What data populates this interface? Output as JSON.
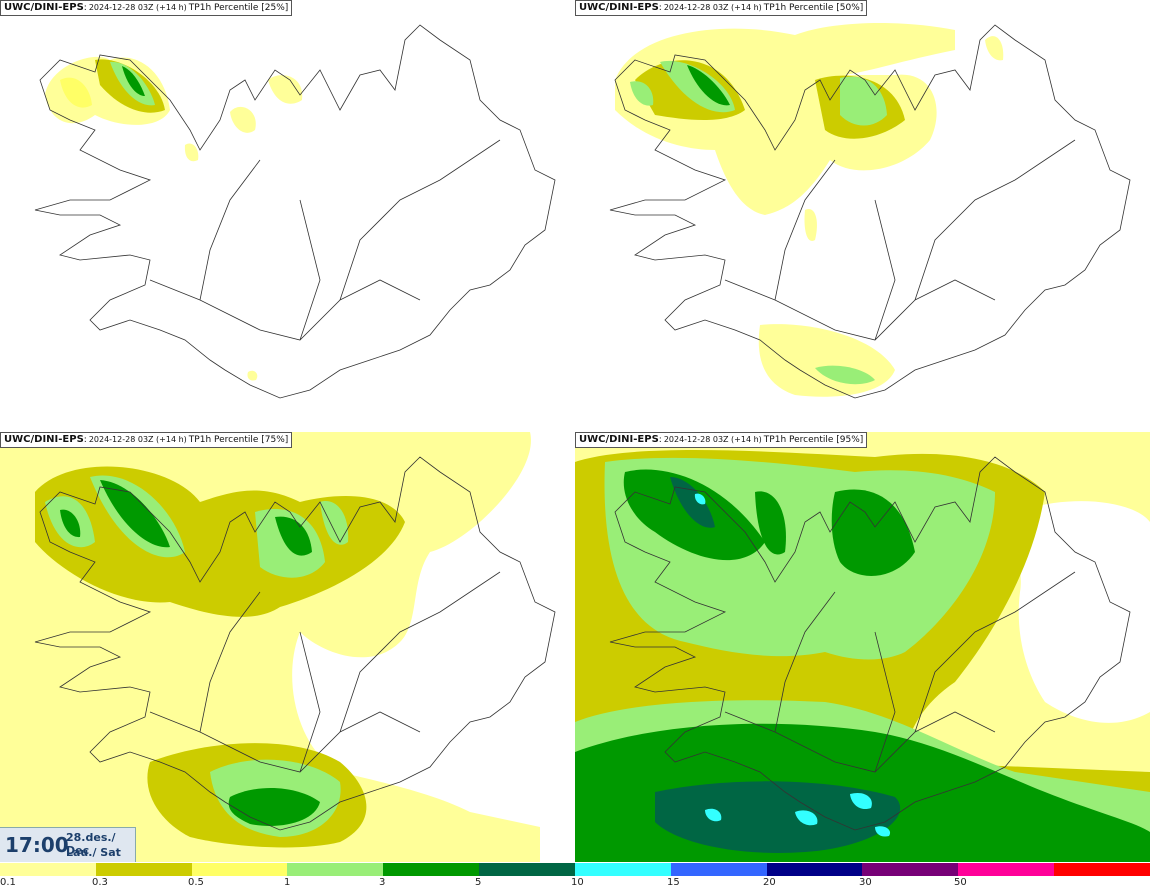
{
  "panels": [
    {
      "model": "UWC/DINI-EPS",
      "run": "2024-12-28 03Z (+14 h)",
      "field": "TP1h Percentile [25%]",
      "percentile": 25
    },
    {
      "model": "UWC/DINI-EPS",
      "run": "2024-12-28 03Z (+14 h)",
      "field": "TP1h Percentile [50%]",
      "percentile": 50
    },
    {
      "model": "UWC/DINI-EPS",
      "run": "2024-12-28 03Z (+14 h)",
      "field": "TP1h Percentile [75%]",
      "percentile": 75
    },
    {
      "model": "UWC/DINI-EPS",
      "run": "2024-12-28 03Z (+14 h)",
      "field": "TP1h Percentile [95%]",
      "percentile": 95
    }
  ],
  "valid_time": {
    "time": "17:00",
    "date_line": "28.des./ Dec",
    "day_line": "Lau./ Sat"
  },
  "legend": {
    "thresholds": [
      "0.1",
      "0.3",
      "0.5",
      "1",
      "3",
      "5",
      "10",
      "15",
      "20",
      "30",
      "50"
    ],
    "colors": [
      "#ffff99",
      "#cccc00",
      "#ffff66",
      "#99ee77",
      "#009900",
      "#006644",
      "#33ffff",
      "#3366ff",
      "#000088",
      "#770077",
      "#ff0099",
      "#ff0000"
    ]
  }
}
